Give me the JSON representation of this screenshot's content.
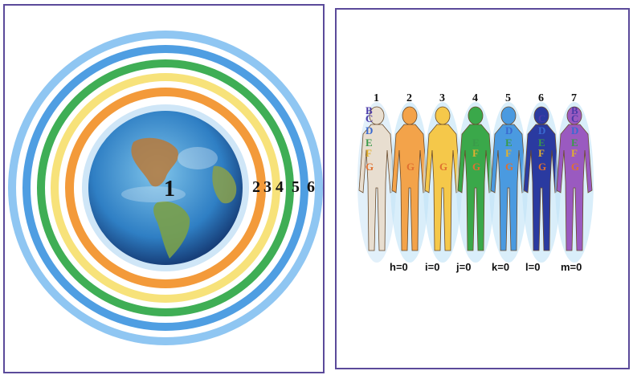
{
  "left": {
    "earth_label": "1",
    "ring_labels": [
      "2",
      "3",
      "4",
      "5",
      "6"
    ]
  },
  "right": {
    "figures": [
      {
        "number": "1",
        "color": "#e8ded0",
        "letters": [
          "B",
          "C",
          "D",
          "E",
          "F",
          "G"
        ]
      },
      {
        "number": "2",
        "color": "#f3a34a",
        "letters": [
          "G"
        ]
      },
      {
        "number": "3",
        "color": "#f5c84a",
        "letters": [
          "G"
        ]
      },
      {
        "number": "4",
        "color": "#3aa84a",
        "letters": [
          "E",
          "F",
          "G"
        ]
      },
      {
        "number": "5",
        "color": "#4a9ae0",
        "letters": [
          "D",
          "E",
          "F",
          "G"
        ]
      },
      {
        "number": "6",
        "color": "#2a3aa0",
        "letters": [
          "C",
          "D",
          "E",
          "F",
          "G"
        ]
      },
      {
        "number": "7",
        "color": "#9a5ac0",
        "letters": [
          "B",
          "C",
          "D",
          "E",
          "F",
          "G"
        ]
      }
    ],
    "equations": [
      "h=0",
      "i=0",
      "j=0",
      "k=0",
      "l=0",
      "m=0"
    ]
  },
  "colors": {
    "frame": "#5b4a9a",
    "rings": [
      "#f39a3a",
      "#f7e07a",
      "#4caf50",
      "#3aa0e0",
      "#5fa8e6"
    ]
  }
}
